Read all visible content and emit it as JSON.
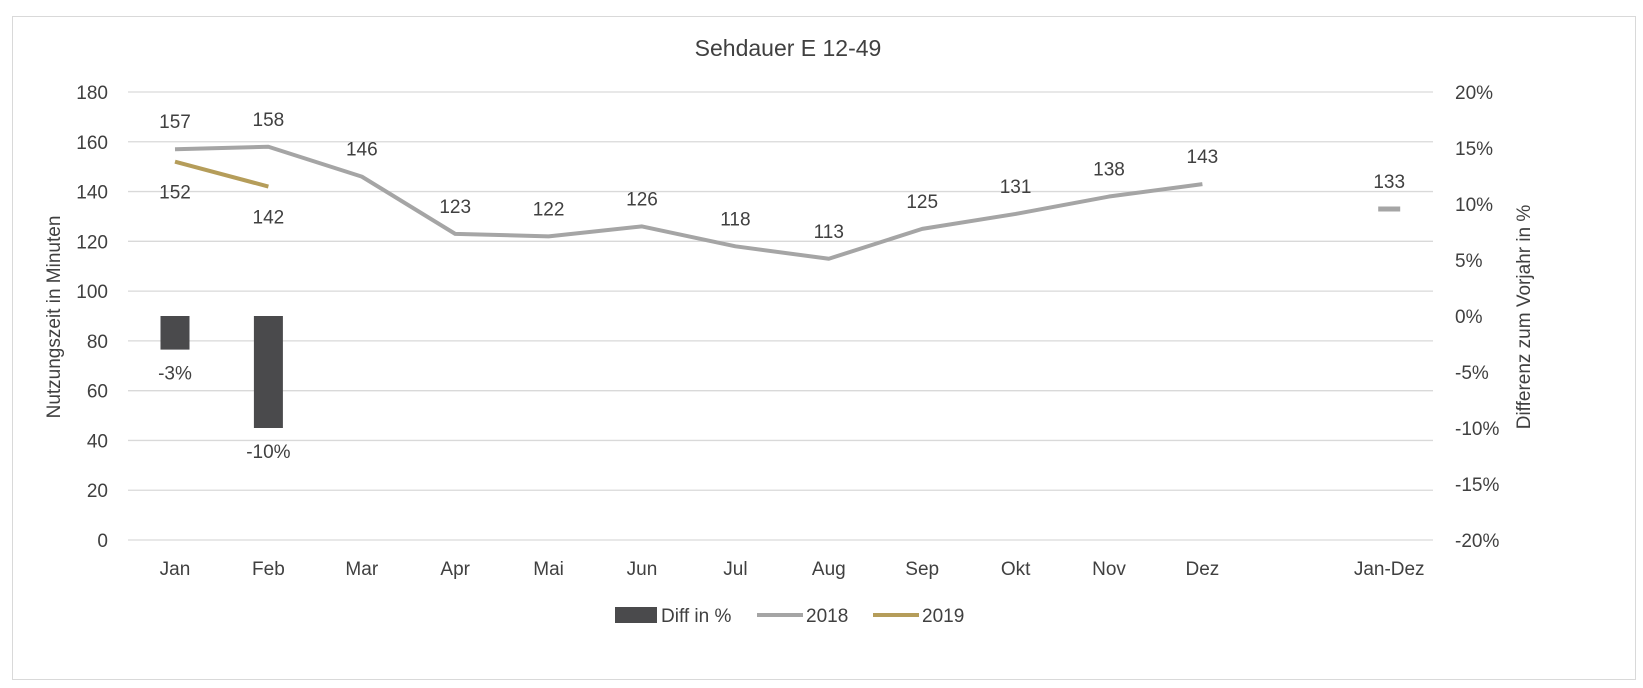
{
  "chart_data": {
    "type": "bar",
    "title": "Sehdauer E 12-49",
    "ylabel": "Nutzungszeit in Minuten",
    "y2label": "Differenz zum Vorjahr in %",
    "ylim": [
      0,
      180
    ],
    "y2lim": [
      -20,
      20
    ],
    "yticks": [
      "0",
      "20",
      "40",
      "60",
      "80",
      "100",
      "120",
      "140",
      "160",
      "180"
    ],
    "y2ticks": [
      "-20%",
      "-15%",
      "-10%",
      "-5%",
      "0%",
      "5%",
      "10%",
      "15%",
      "20%"
    ],
    "categories": [
      "Jan",
      "Feb",
      "Mar",
      "Apr",
      "Mai",
      "Jun",
      "Jul",
      "Aug",
      "Sep",
      "Okt",
      "Nov",
      "Dez",
      "",
      "Jan-Dez"
    ],
    "grid": true,
    "legend_position": "bottom",
    "series": [
      {
        "name": "Diff in %",
        "type": "bar",
        "axis": "right",
        "color": "#4a4a4c",
        "values": [
          -3,
          -10,
          null,
          null,
          null,
          null,
          null,
          null,
          null,
          null,
          null,
          null,
          null,
          null
        ],
        "labels": [
          "-3%",
          "-10%",
          "",
          "",
          "",
          "",
          "",
          "",
          "",
          "",
          "",
          "",
          "",
          ""
        ]
      },
      {
        "name": "2018",
        "type": "line",
        "axis": "left",
        "color": "#a5a5a5",
        "values": [
          157,
          158,
          146,
          123,
          122,
          126,
          118,
          113,
          125,
          131,
          138,
          143,
          null,
          133
        ],
        "labels": [
          "157",
          "158",
          "146",
          "123",
          "122",
          "126",
          "118",
          "113",
          "125",
          "131",
          "138",
          "143",
          "",
          "133"
        ]
      },
      {
        "name": "2019",
        "type": "line",
        "axis": "left",
        "color": "#b59d5a",
        "values": [
          152,
          142,
          null,
          null,
          null,
          null,
          null,
          null,
          null,
          null,
          null,
          null,
          null,
          null
        ],
        "labels": [
          "152",
          "142",
          "",
          "",
          "",
          "",
          "",
          "",
          "",
          "",
          "",
          "",
          "",
          ""
        ]
      }
    ]
  }
}
